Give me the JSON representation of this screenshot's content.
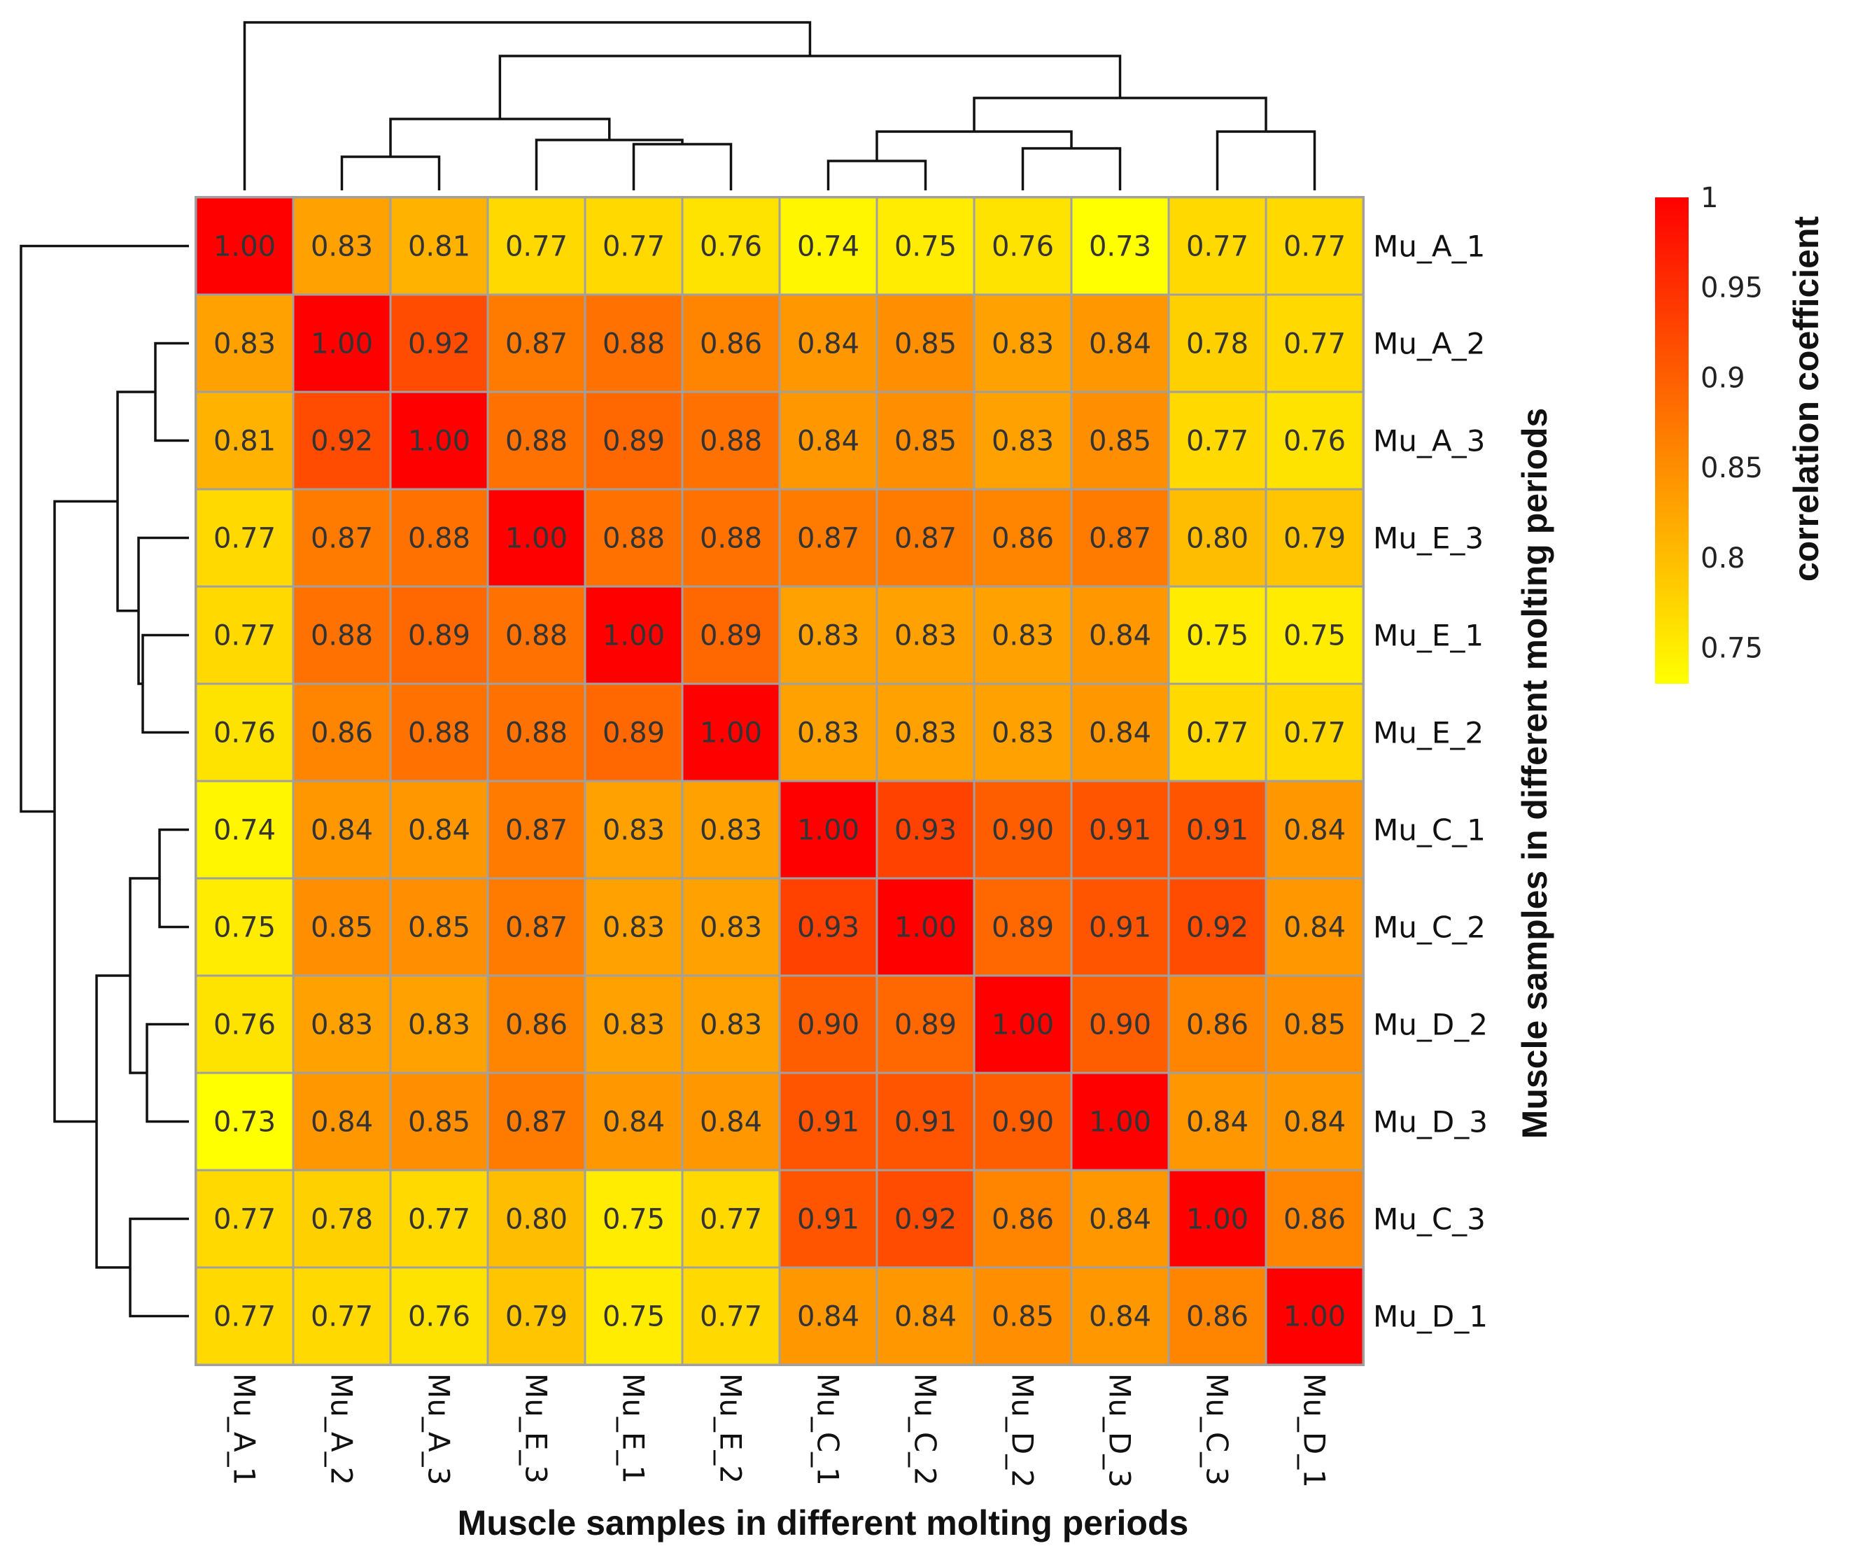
{
  "chart_data": {
    "type": "heatmap",
    "title": "",
    "xlabel": "Muscle samples in different molting periods",
    "ylabel": "Muscle samples in different molting periods",
    "row_labels": [
      "Mu_A_1",
      "Mu_A_2",
      "Mu_A_3",
      "Mu_E_3",
      "Mu_E_1",
      "Mu_E_2",
      "Mu_C_1",
      "Mu_C_2",
      "Mu_D_2",
      "Mu_D_3",
      "Mu_C_3",
      "Mu_D_1"
    ],
    "col_labels": [
      "Mu_A_1",
      "Mu_A_2",
      "Mu_A_3",
      "Mu_E_3",
      "Mu_E_1",
      "Mu_E_2",
      "Mu_C_1",
      "Mu_C_2",
      "Mu_D_2",
      "Mu_D_3",
      "Mu_C_3",
      "Mu_D_1"
    ],
    "values": [
      [
        1.0,
        0.83,
        0.81,
        0.77,
        0.77,
        0.76,
        0.74,
        0.75,
        0.76,
        0.73,
        0.77,
        0.77
      ],
      [
        0.83,
        1.0,
        0.92,
        0.87,
        0.88,
        0.86,
        0.84,
        0.85,
        0.83,
        0.84,
        0.78,
        0.77
      ],
      [
        0.81,
        0.92,
        1.0,
        0.88,
        0.89,
        0.88,
        0.84,
        0.85,
        0.83,
        0.85,
        0.77,
        0.76
      ],
      [
        0.77,
        0.87,
        0.88,
        1.0,
        0.88,
        0.88,
        0.87,
        0.87,
        0.86,
        0.87,
        0.8,
        0.79
      ],
      [
        0.77,
        0.88,
        0.89,
        0.88,
        1.0,
        0.89,
        0.83,
        0.83,
        0.83,
        0.84,
        0.75,
        0.75
      ],
      [
        0.76,
        0.86,
        0.88,
        0.88,
        0.89,
        1.0,
        0.83,
        0.83,
        0.83,
        0.84,
        0.77,
        0.77
      ],
      [
        0.74,
        0.84,
        0.84,
        0.87,
        0.83,
        0.83,
        1.0,
        0.93,
        0.9,
        0.91,
        0.91,
        0.84
      ],
      [
        0.75,
        0.85,
        0.85,
        0.87,
        0.83,
        0.83,
        0.93,
        1.0,
        0.89,
        0.91,
        0.92,
        0.84
      ],
      [
        0.76,
        0.83,
        0.83,
        0.86,
        0.83,
        0.83,
        0.9,
        0.89,
        1.0,
        0.9,
        0.86,
        0.85
      ],
      [
        0.73,
        0.84,
        0.85,
        0.87,
        0.84,
        0.84,
        0.91,
        0.91,
        0.9,
        1.0,
        0.84,
        0.84
      ],
      [
        0.77,
        0.78,
        0.77,
        0.8,
        0.75,
        0.77,
        0.91,
        0.92,
        0.86,
        0.84,
        1.0,
        0.86
      ],
      [
        0.77,
        0.77,
        0.76,
        0.79,
        0.75,
        0.77,
        0.84,
        0.84,
        0.85,
        0.84,
        0.86,
        1.0
      ]
    ],
    "value_format": "2 decimals",
    "color_scale": {
      "min": 0.73,
      "max": 1.0,
      "low_color": "#ffff00",
      "high_color": "#ff0000"
    },
    "legend": {
      "title": "correlation coefficient",
      "ticks": [
        1,
        0.95,
        0.9,
        0.85,
        0.8,
        0.75
      ],
      "tick_labels": [
        "1",
        "0.95",
        "0.9",
        "0.85",
        "0.8",
        "0.75"
      ],
      "position": "right"
    },
    "dendrogram": {
      "leaf_order": [
        "Mu_A_1",
        "Mu_A_2",
        "Mu_A_3",
        "Mu_E_3",
        "Mu_E_1",
        "Mu_E_2",
        "Mu_C_1",
        "Mu_C_2",
        "Mu_D_2",
        "Mu_D_3",
        "Mu_C_3",
        "Mu_D_1"
      ],
      "merges": [
        {
          "a": "L1",
          "b": "L2",
          "h": 0.08
        },
        {
          "a": "L4",
          "b": "L5",
          "h": 0.11
        },
        {
          "a": "L3",
          "b": "N1",
          "h": 0.12
        },
        {
          "a": "L6",
          "b": "L7",
          "h": 0.07
        },
        {
          "a": "L8",
          "b": "L9",
          "h": 0.1
        },
        {
          "a": "N3",
          "b": "N4",
          "h": 0.14
        },
        {
          "a": "L10",
          "b": "L11",
          "h": 0.14
        },
        {
          "a": "N0",
          "b": "N2",
          "h": 0.17
        },
        {
          "a": "N5",
          "b": "N6",
          "h": 0.22
        },
        {
          "a": "N7",
          "b": "N8",
          "h": 0.32
        },
        {
          "a": "L0",
          "b": "N9",
          "h": 0.4
        }
      ],
      "max_height": 0.4
    }
  }
}
